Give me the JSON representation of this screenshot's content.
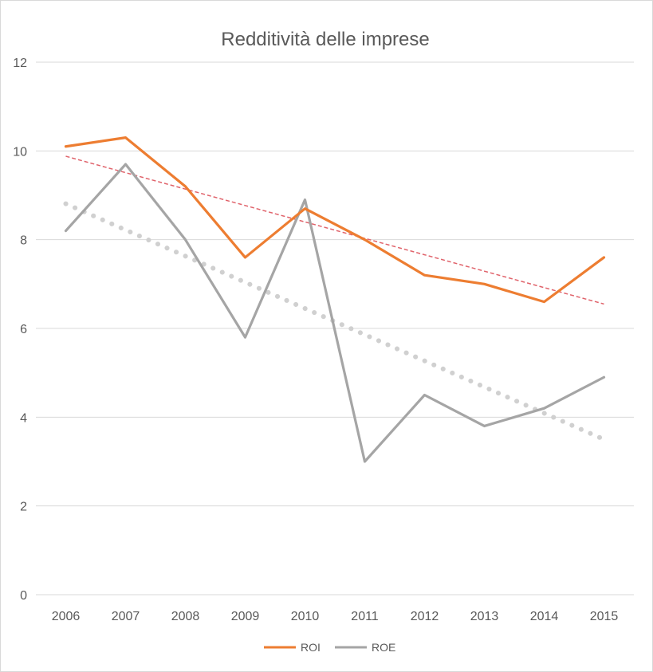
{
  "chart_data": {
    "type": "line",
    "title": "Redditività delle imprese",
    "x": [
      "2006",
      "2007",
      "2008",
      "2009",
      "2010",
      "2011",
      "2012",
      "2013",
      "2014",
      "2015"
    ],
    "ylim": [
      0,
      12
    ],
    "yticks": [
      0,
      2,
      4,
      6,
      8,
      10,
      12
    ],
    "grid": true,
    "legend_position": "bottom",
    "series": [
      {
        "name": "ROI",
        "color": "#ed7d31",
        "values": [
          10.1,
          10.3,
          9.2,
          7.6,
          8.7,
          8.0,
          7.2,
          7.0,
          6.6,
          7.6
        ]
      },
      {
        "name": "ROE",
        "color": "#a5a5a5",
        "values": [
          8.2,
          9.7,
          8.0,
          5.8,
          8.9,
          3.0,
          4.5,
          3.8,
          4.2,
          4.9
        ]
      }
    ],
    "trendlines": [
      {
        "series": "ROI",
        "style": "dashed",
        "color": "#e0636b",
        "values": [
          9.88,
          9.51,
          9.14,
          8.77,
          8.4,
          8.03,
          7.66,
          7.29,
          6.92,
          6.55
        ]
      },
      {
        "series": "ROE",
        "style": "dotted",
        "color": "#d0d0d0",
        "values": [
          8.81,
          8.22,
          7.63,
          7.04,
          6.45,
          5.86,
          5.27,
          4.68,
          4.09,
          3.5
        ]
      }
    ]
  }
}
